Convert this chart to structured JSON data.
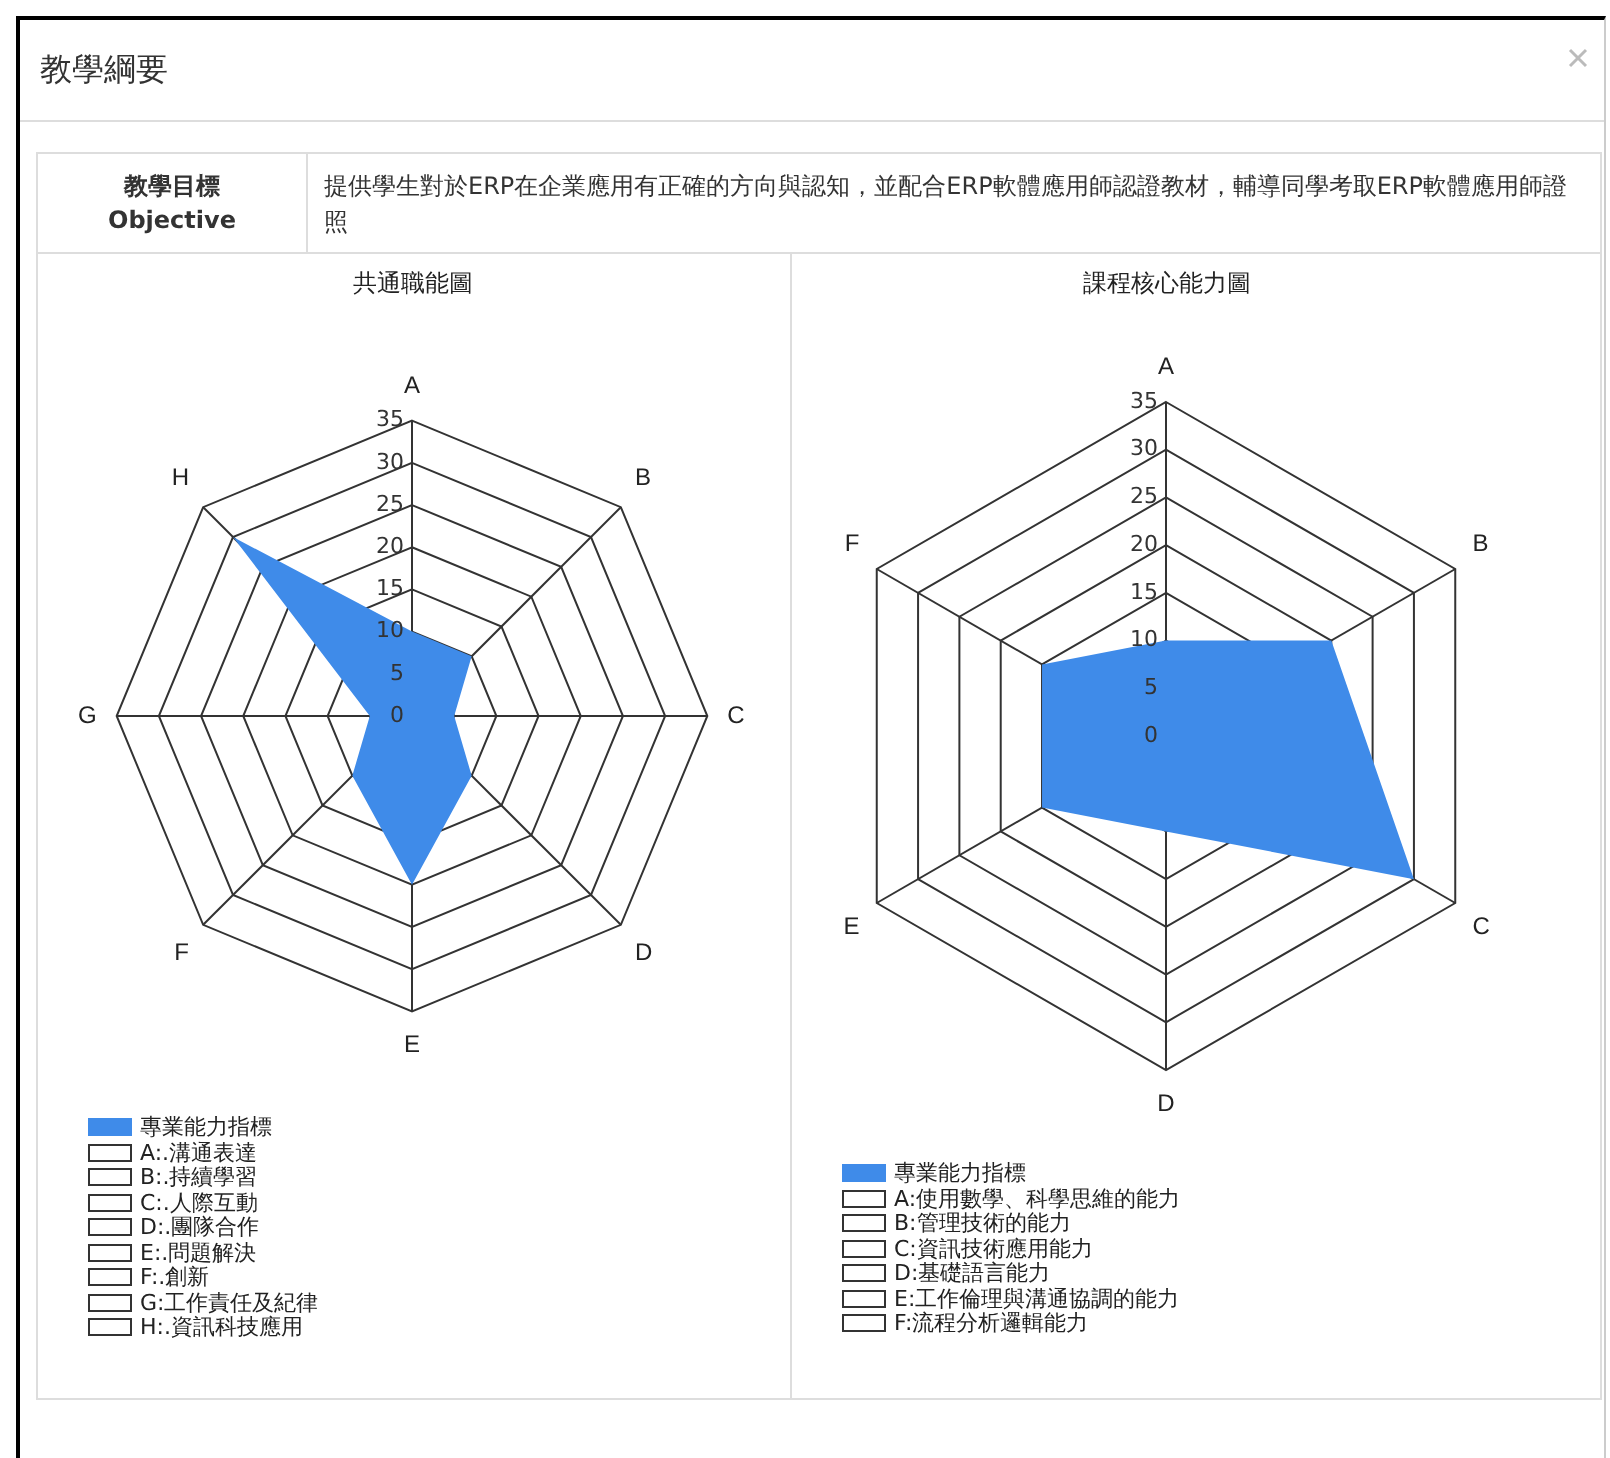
{
  "chart_data": [
    {
      "type": "radar",
      "title": "共通職能圖",
      "categories": [
        "A",
        "B",
        "C",
        "D",
        "E",
        "F",
        "G",
        "H"
      ],
      "series": [
        {
          "name": "專業能力指標",
          "color": "#3f8be9",
          "values": [
            10,
            10,
            5,
            10,
            20,
            10,
            5,
            30
          ]
        }
      ],
      "ylim": [
        0,
        35
      ],
      "yticks": [
        0,
        5,
        10,
        15,
        20,
        25,
        30,
        35
      ],
      "grid": true,
      "legend": "bottom left",
      "marker": "none",
      "annotations": [
        "教學綱要",
        "教學目標",
        "Objective",
        "提供學生對於ERP在企業應用有正確的方向與認知，並配合ERP軟體應用師認證教材，輔導同學考取ERP軟體應用師證照",
        "A:.溝通表達",
        "B:.持續學習",
        "C:.人際互動",
        "D:.團隊合作",
        "E:.問題解決",
        "F:.創新",
        "G:工作責任及紀律",
        "H:.資訊科技應用"
      ]
    },
    {
      "type": "radar",
      "title": "課程核心能力圖",
      "categories": [
        "A",
        "B",
        "C",
        "D",
        "E",
        "F"
      ],
      "series": [
        {
          "name": "專業能力指標",
          "color": "#3f8be9",
          "values": [
            10,
            20,
            30,
            10,
            15,
            15
          ]
        }
      ],
      "ylim": [
        0,
        35
      ],
      "yticks": [
        0,
        5,
        10,
        15,
        20,
        25,
        30,
        35
      ],
      "grid": true,
      "legend": "bottom left",
      "marker": "none",
      "annotations": [
        "A:使用數學、科學思維的能力",
        "B:管理技術的能力",
        "C:資訊技術應用能力",
        "D:基礎語言能力",
        "E:工作倫理與溝通協調的能力",
        "F:流程分析邏輯能力"
      ]
    }
  ]
}
